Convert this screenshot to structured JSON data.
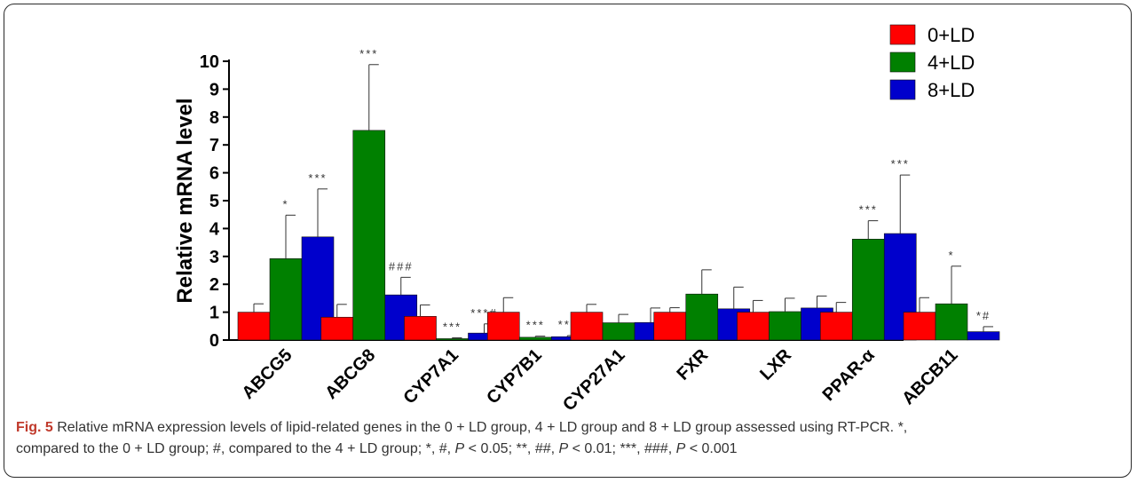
{
  "chart_data": {
    "type": "bar",
    "ylabel": "Relative mRNA level",
    "ylim": [
      0,
      10
    ],
    "yticks": [
      0,
      1,
      2,
      3,
      4,
      5,
      6,
      7,
      8,
      9,
      10
    ],
    "grid": false,
    "legend_placement": "top-right",
    "categories": [
      "ABCG5",
      "ABCG8",
      "CYP7A1",
      "CYP7B1",
      "CYP27A1",
      "FXR",
      "LXR",
      "PPAR-α",
      "ABCB11"
    ],
    "series": [
      {
        "name": "0+LD",
        "color": "#ff0000",
        "values": [
          1.0,
          0.82,
          0.85,
          1.0,
          1.0,
          1.0,
          1.0,
          1.0,
          1.0
        ],
        "err_upper": [
          1.3,
          1.28,
          1.26,
          1.52,
          1.28,
          1.16,
          1.42,
          1.35,
          1.52
        ],
        "annotations": [
          "",
          "",
          "",
          "",
          "",
          "",
          "",
          "",
          ""
        ]
      },
      {
        "name": "4+LD",
        "color": "#008000",
        "values": [
          2.92,
          7.52,
          0.05,
          0.1,
          0.62,
          1.65,
          1.02,
          3.62,
          1.3
        ],
        "err_upper": [
          4.48,
          9.88,
          0.08,
          0.14,
          0.92,
          2.52,
          1.5,
          4.28,
          2.65
        ],
        "annotations": [
          "*",
          "***",
          "***",
          "***",
          "",
          "",
          "",
          "***",
          "*"
        ]
      },
      {
        "name": "8+LD",
        "color": "#0000cc",
        "values": [
          3.7,
          1.62,
          0.25,
          0.12,
          0.63,
          1.12,
          1.15,
          3.82,
          0.3
        ],
        "err_upper": [
          5.42,
          2.25,
          0.58,
          0.16,
          1.15,
          1.9,
          1.58,
          5.92,
          0.48
        ],
        "annotations": [
          "***",
          "###",
          "***#",
          "***",
          "",
          "",
          "",
          "***",
          "*#"
        ]
      }
    ]
  },
  "caption": {
    "label": "Fig. 5",
    "line1": " Relative mRNA expression levels of lipid-related genes in the 0 + LD group, 4 + LD group and 8 + LD group assessed using RT-PCR. *,",
    "line2_a": "compared to the 0 + LD group; #, compared to the 4 + LD group; *, #, ",
    "p": "P",
    "line2_b": " < 0.05; **, ##, ",
    "line2_c": " < 0.01; ***, ###, ",
    "line2_d": " < 0.001"
  }
}
